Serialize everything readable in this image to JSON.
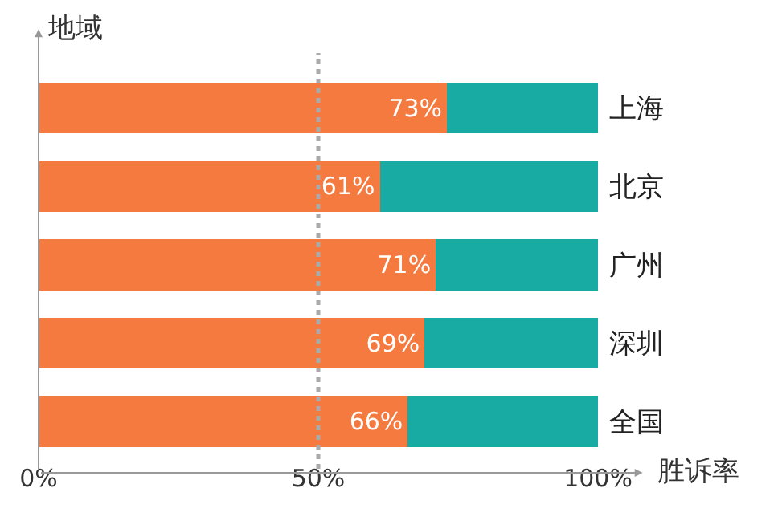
{
  "chart_data": {
    "type": "bar",
    "orientation": "horizontal",
    "stacked": true,
    "xlabel": "胜诉率",
    "ylabel": "地域",
    "categories": [
      "上海",
      "北京",
      "广州",
      "深圳",
      "全国"
    ],
    "series": [
      {
        "color": "#f47a3f",
        "values": [
          73,
          61,
          71,
          69,
          66
        ],
        "value_labels": [
          "73%",
          "61%",
          "71%",
          "69%",
          "66%"
        ]
      },
      {
        "color": "#17aba3",
        "values": [
          27,
          39,
          29,
          31,
          34
        ]
      }
    ],
    "xlim": [
      0,
      100
    ],
    "xticks": [
      {
        "value": 0,
        "label": "0%"
      },
      {
        "value": 50,
        "label": "50%"
      },
      {
        "value": 100,
        "label": "100%"
      }
    ],
    "ref_lines": [
      {
        "axis": "x",
        "value": 50,
        "color": "#aaaaaa",
        "line_style": "dotted"
      }
    ]
  }
}
